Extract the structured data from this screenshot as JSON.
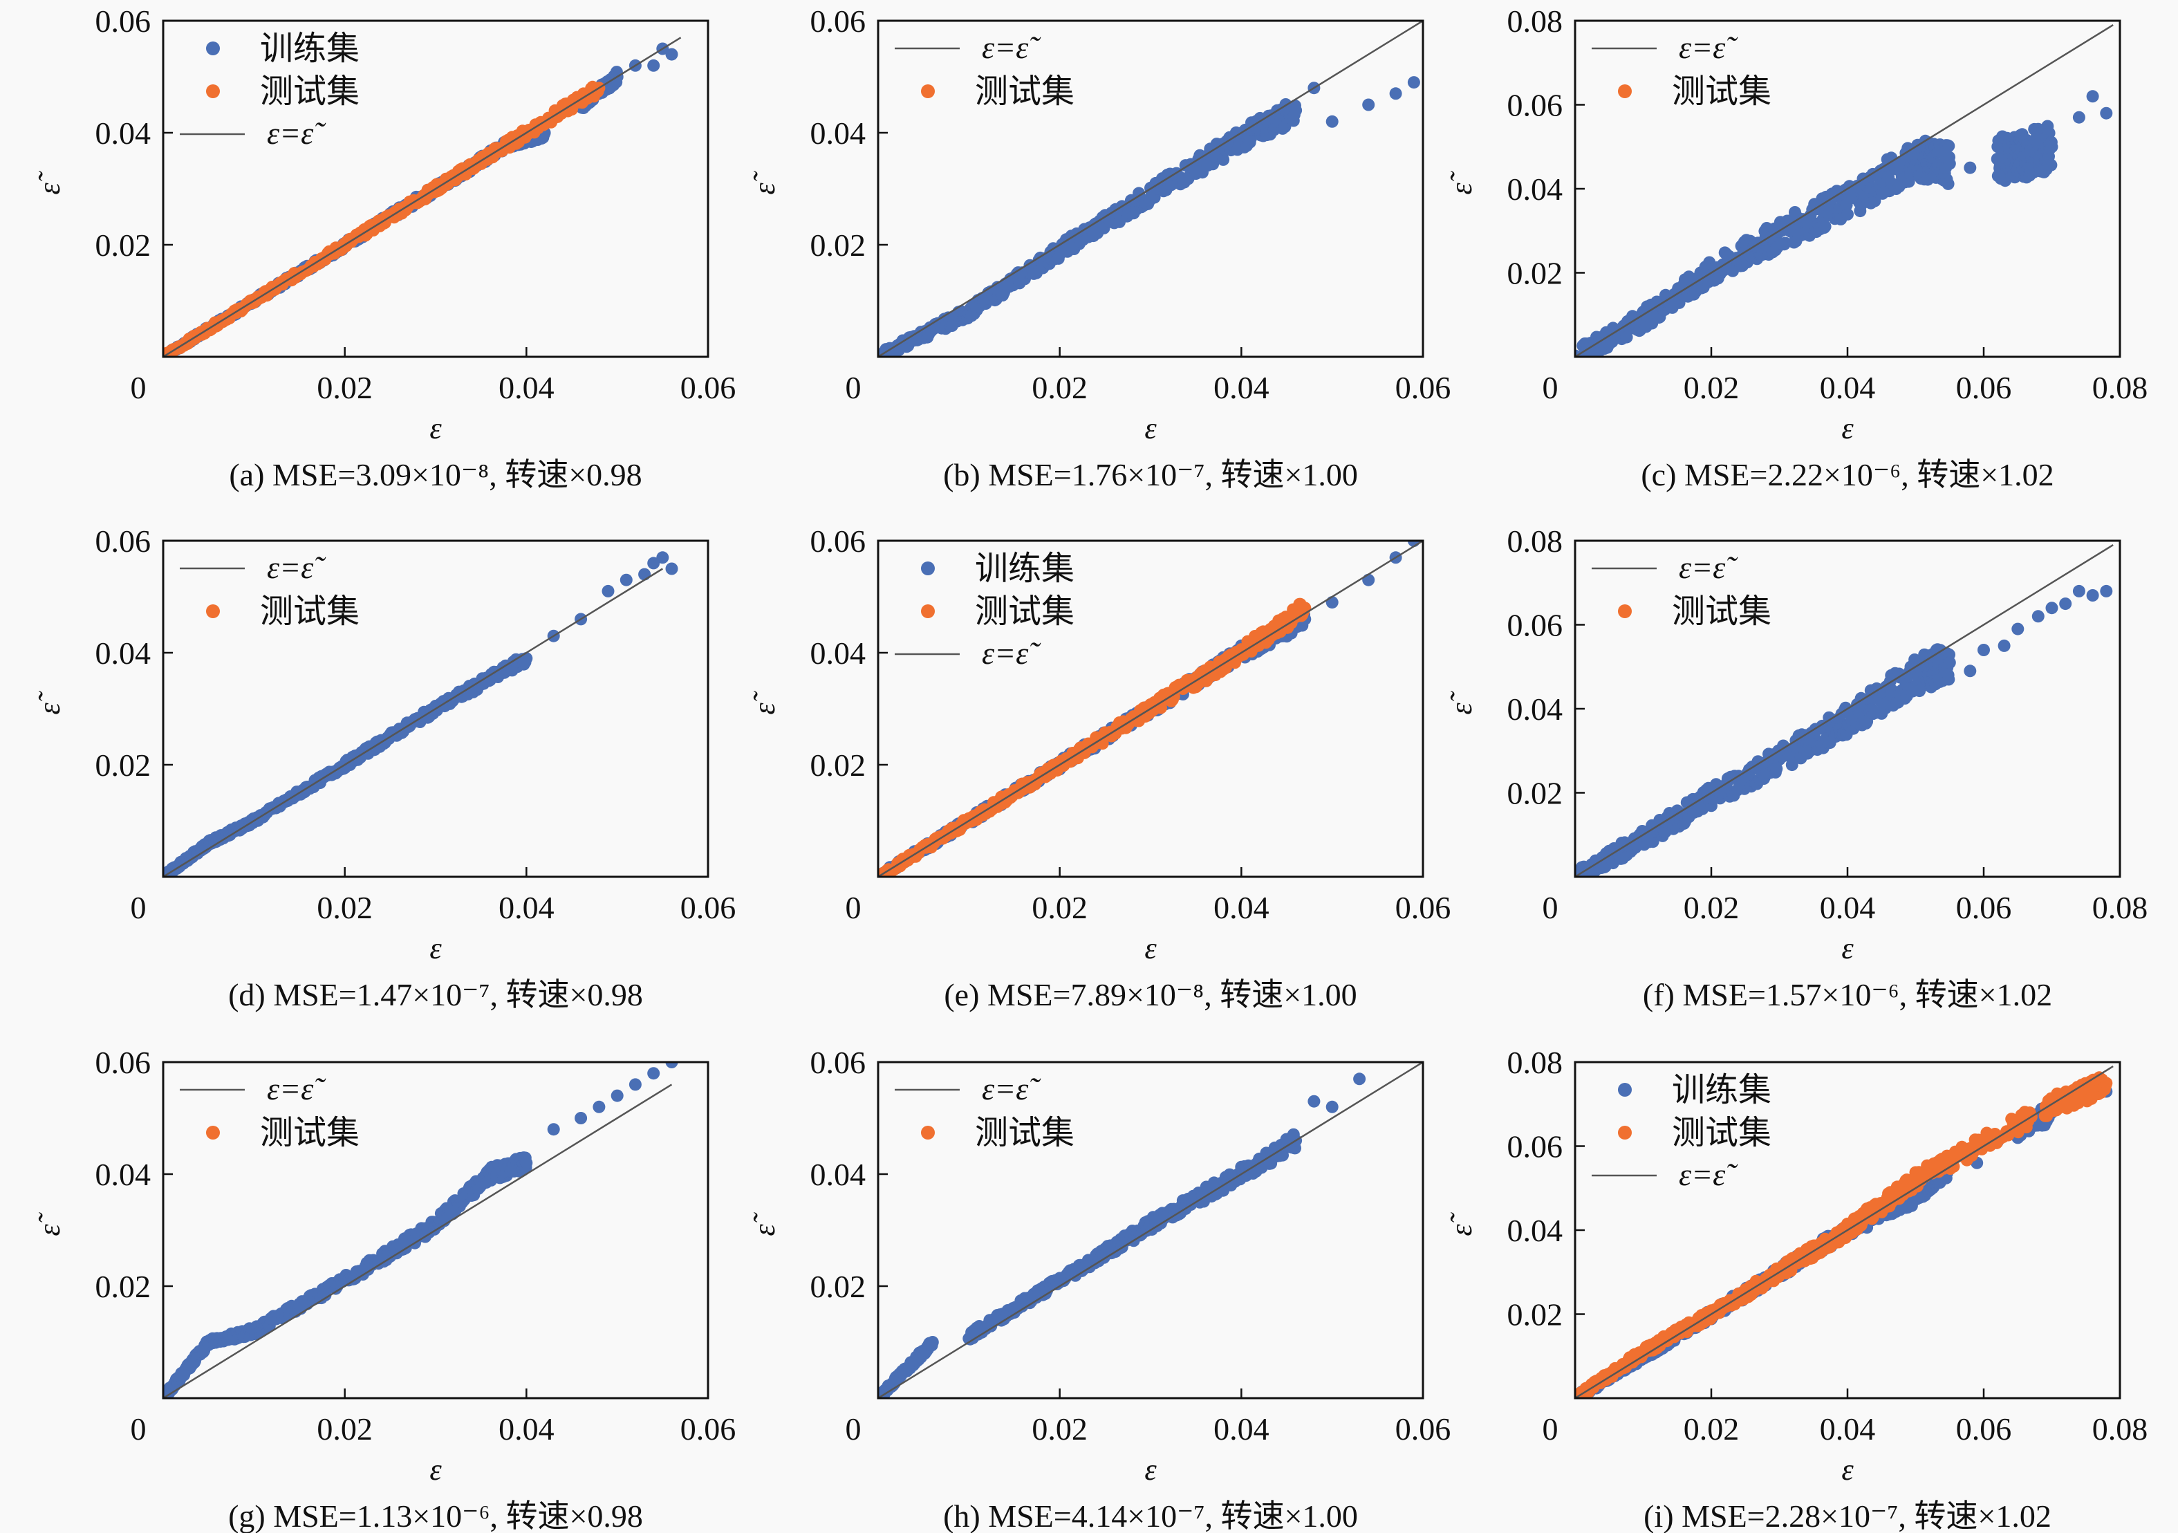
{
  "colors": {
    "train": "#4a6fb5",
    "test": "#f07030",
    "line": "#555555",
    "background": "#f9f9f9"
  },
  "legend_labels": {
    "train": "训练集",
    "test": "测试集",
    "line": "ε=ε̃"
  },
  "chart_data": [
    {
      "id": "a",
      "type": "scatter",
      "caption": "(a) MSE=3.09×10⁻⁸, 转速×0.98",
      "xlabel": "ε",
      "ylabel": "ε̃",
      "xlim": [
        0,
        0.06
      ],
      "ylim": [
        0,
        0.06
      ],
      "xticks": [
        "0",
        "0.02",
        "0.04",
        "0.06"
      ],
      "yticks": [
        "0.02",
        "0.04",
        "0.06"
      ],
      "legend": [
        "train",
        "test",
        "line"
      ],
      "legend_order": "points-first",
      "line_end": 0.057,
      "series": [
        {
          "name": "训练集",
          "color": "train",
          "x": [
            0.0,
            0.01,
            0.02,
            0.03,
            0.038,
            0.042,
            0.046,
            0.05,
            0.052,
            0.054,
            0.055,
            0.056
          ],
          "y": [
            0.0,
            0.01,
            0.02,
            0.03,
            0.038,
            0.04,
            0.045,
            0.05,
            0.052,
            0.052,
            0.055,
            0.054
          ],
          "spread": 0.0008
        },
        {
          "name": "测试集",
          "color": "test",
          "x": [
            0.0,
            0.01,
            0.02,
            0.03,
            0.038,
            0.048
          ],
          "y": [
            0.0,
            0.01,
            0.02,
            0.03,
            0.038,
            0.048
          ],
          "spread": 0.0008
        }
      ]
    },
    {
      "id": "b",
      "type": "scatter",
      "caption": "(b) MSE=1.76×10⁻⁷, 转速×1.00",
      "xlabel": "ε",
      "ylabel": "ε̃",
      "xlim": [
        0,
        0.06
      ],
      "ylim": [
        0,
        0.06
      ],
      "xticks": [
        "0",
        "0.02",
        "0.04",
        "0.06"
      ],
      "yticks": [
        "0.02",
        "0.04",
        "0.06"
      ],
      "legend": [
        "line",
        "test"
      ],
      "legend_order": "line-first",
      "line_end": 0.06,
      "series": [
        {
          "name": "测试集",
          "color": "train",
          "x": [
            0.0,
            0.01,
            0.02,
            0.03,
            0.04,
            0.046,
            0.048,
            0.05,
            0.054,
            0.057,
            0.059
          ],
          "y": [
            0.0,
            0.008,
            0.019,
            0.029,
            0.039,
            0.044,
            0.048,
            0.042,
            0.045,
            0.047,
            0.049
          ],
          "spread": 0.0018
        }
      ]
    },
    {
      "id": "c",
      "type": "scatter",
      "caption": "(c) MSE=2.22×10⁻⁶, 转速×1.02",
      "xlabel": "ε",
      "ylabel": "ε̃",
      "xlim": [
        0,
        0.08
      ],
      "ylim": [
        0,
        0.08
      ],
      "xticks": [
        "0",
        "0.02",
        "0.04",
        "0.06",
        "0.08"
      ],
      "yticks": [
        "0.02",
        "0.04",
        "0.06",
        "0.08"
      ],
      "legend": [
        "line",
        "test"
      ],
      "legend_order": "line-first",
      "line_end": 0.079,
      "series": [
        {
          "name": "测试集",
          "color": "train",
          "x": [
            0.0,
            0.01,
            0.02,
            0.03,
            0.04,
            0.05,
            0.055,
            0.058,
            0.062,
            0.066,
            0.07,
            0.074,
            0.076,
            0.078
          ],
          "y": [
            0.0,
            0.009,
            0.02,
            0.029,
            0.037,
            0.047,
            0.046,
            0.045,
            0.047,
            0.048,
            0.05,
            0.057,
            0.062,
            0.058
          ],
          "spread": 0.0045
        }
      ]
    },
    {
      "id": "d",
      "type": "scatter",
      "caption": "(d) MSE=1.47×10⁻⁷, 转速×0.98",
      "xlabel": "ε",
      "ylabel": "ε̃",
      "xlim": [
        0,
        0.06
      ],
      "ylim": [
        0,
        0.06
      ],
      "xticks": [
        "0",
        "0.02",
        "0.04",
        "0.06"
      ],
      "yticks": [
        "0.02",
        "0.04",
        "0.06"
      ],
      "legend": [
        "line",
        "test"
      ],
      "legend_order": "line-first",
      "line_end": 0.055,
      "series": [
        {
          "name": "测试集",
          "color": "train",
          "x": [
            0.0,
            0.005,
            0.01,
            0.02,
            0.03,
            0.04,
            0.043,
            0.046,
            0.049,
            0.051,
            0.053,
            0.054,
            0.055,
            0.056
          ],
          "y": [
            0.0,
            0.006,
            0.01,
            0.02,
            0.03,
            0.039,
            0.043,
            0.046,
            0.051,
            0.053,
            0.054,
            0.056,
            0.057,
            0.055
          ],
          "spread": 0.0008
        }
      ]
    },
    {
      "id": "e",
      "type": "scatter",
      "caption": "(e) MSE=7.89×10⁻⁸, 转速×1.00",
      "xlabel": "ε",
      "ylabel": "ε̃",
      "xlim": [
        0,
        0.06
      ],
      "ylim": [
        0,
        0.06
      ],
      "xticks": [
        "0",
        "0.02",
        "0.04",
        "0.06"
      ],
      "yticks": [
        "0.02",
        "0.04",
        "0.06"
      ],
      "legend": [
        "train",
        "test",
        "line"
      ],
      "legend_order": "points-first",
      "line_end": 0.06,
      "series": [
        {
          "name": "训练集",
          "color": "train",
          "x": [
            0.0,
            0.01,
            0.02,
            0.03,
            0.04,
            0.047,
            0.05,
            0.054,
            0.057,
            0.059
          ],
          "y": [
            0.0,
            0.01,
            0.02,
            0.03,
            0.04,
            0.046,
            0.049,
            0.053,
            0.057,
            0.06
          ],
          "spread": 0.0012
        },
        {
          "name": "测试集",
          "color": "test",
          "x": [
            0.0,
            0.01,
            0.02,
            0.03,
            0.04,
            0.047
          ],
          "y": [
            0.0,
            0.01,
            0.02,
            0.03,
            0.04,
            0.048
          ],
          "spread": 0.0012
        }
      ]
    },
    {
      "id": "f",
      "type": "scatter",
      "caption": "(f) MSE=1.57×10⁻⁶, 转速×1.02",
      "xlabel": "ε",
      "ylabel": "ε̃",
      "xlim": [
        0,
        0.08
      ],
      "ylim": [
        0,
        0.08
      ],
      "xticks": [
        "0",
        "0.02",
        "0.04",
        "0.06",
        "0.08"
      ],
      "yticks": [
        "0.02",
        "0.04",
        "0.06",
        "0.08"
      ],
      "legend": [
        "line",
        "test"
      ],
      "legend_order": "line-first",
      "line_end": 0.079,
      "series": [
        {
          "name": "测试集",
          "color": "train",
          "x": [
            0.0,
            0.01,
            0.02,
            0.03,
            0.04,
            0.05,
            0.055,
            0.058,
            0.06,
            0.063,
            0.065,
            0.068,
            0.07,
            0.072,
            0.074,
            0.076,
            0.078
          ],
          "y": [
            0.0,
            0.009,
            0.019,
            0.028,
            0.037,
            0.048,
            0.051,
            0.049,
            0.054,
            0.055,
            0.059,
            0.062,
            0.064,
            0.065,
            0.068,
            0.067,
            0.068
          ],
          "spread": 0.004
        }
      ]
    },
    {
      "id": "g",
      "type": "scatter",
      "caption": "(g) MSE=1.13×10⁻⁶, 转速×0.98",
      "xlabel": "ε",
      "ylabel": "ε̃",
      "xlim": [
        0,
        0.06
      ],
      "ylim": [
        0,
        0.06
      ],
      "xticks": [
        "0",
        "0.02",
        "0.04",
        "0.06"
      ],
      "yticks": [
        "0.02",
        "0.04",
        "0.06"
      ],
      "legend": [
        "line",
        "test"
      ],
      "legend_order": "line-first",
      "line_end": 0.056,
      "series": [
        {
          "name": "测试集",
          "color": "train",
          "x": [
            0.0,
            0.005,
            0.01,
            0.02,
            0.03,
            0.036,
            0.04,
            0.043,
            0.046,
            0.048,
            0.05,
            0.052,
            0.054,
            0.056
          ],
          "y": [
            0.0,
            0.01,
            0.012,
            0.021,
            0.031,
            0.04,
            0.042,
            0.048,
            0.05,
            0.052,
            0.054,
            0.056,
            0.058,
            0.06
          ],
          "spread": 0.0012
        }
      ]
    },
    {
      "id": "h",
      "type": "scatter",
      "caption": "(h) MSE=4.14×10⁻⁷, 转速×1.00",
      "xlabel": "ε",
      "ylabel": "ε̃",
      "xlim": [
        0,
        0.06
      ],
      "ylim": [
        0,
        0.06
      ],
      "xticks": [
        "0",
        "0.02",
        "0.04",
        "0.06"
      ],
      "yticks": [
        "0.02",
        "0.04",
        "0.06"
      ],
      "legend": [
        "line",
        "test"
      ],
      "legend_order": "line-first",
      "line_end": 0.06,
      "series": [
        {
          "name": "测试集",
          "color": "train",
          "x": [
            0.0,
            0.006,
            0.01,
            0.02,
            0.03,
            0.04,
            0.046,
            0.048,
            0.05,
            0.053
          ],
          "y": [
            0.0,
            0.01,
            0.011,
            0.021,
            0.031,
            0.04,
            0.046,
            0.053,
            0.052,
            0.057
          ],
          "spread": 0.0012
        }
      ]
    },
    {
      "id": "i",
      "type": "scatter",
      "caption": "(i) MSE=2.28×10⁻⁷, 转速×1.02",
      "xlabel": "ε",
      "ylabel": "ε̃",
      "xlim": [
        0,
        0.08
      ],
      "ylim": [
        0,
        0.08
      ],
      "xticks": [
        "0",
        "0.02",
        "0.04",
        "0.06",
        "0.08"
      ],
      "yticks": [
        "0.02",
        "0.04",
        "0.06",
        "0.08"
      ],
      "legend": [
        "train",
        "test",
        "line"
      ],
      "legend_order": "points-first",
      "line_end": 0.079,
      "series": [
        {
          "name": "训练集",
          "color": "train",
          "x": [
            0.0,
            0.01,
            0.02,
            0.03,
            0.04,
            0.05,
            0.055,
            0.059,
            0.062,
            0.065,
            0.07,
            0.073,
            0.076,
            0.077,
            0.078
          ],
          "y": [
            0.0,
            0.01,
            0.02,
            0.03,
            0.04,
            0.048,
            0.055,
            0.056,
            0.061,
            0.064,
            0.068,
            0.07,
            0.074,
            0.076,
            0.073
          ],
          "spread": 0.0018
        },
        {
          "name": "测试集",
          "color": "test",
          "x": [
            0.0,
            0.01,
            0.02,
            0.03,
            0.04,
            0.05,
            0.067,
            0.069,
            0.078
          ],
          "y": [
            0.0,
            0.011,
            0.02,
            0.03,
            0.04,
            0.052,
            0.067,
            0.069,
            0.075
          ],
          "spread": 0.0018
        }
      ]
    }
  ]
}
